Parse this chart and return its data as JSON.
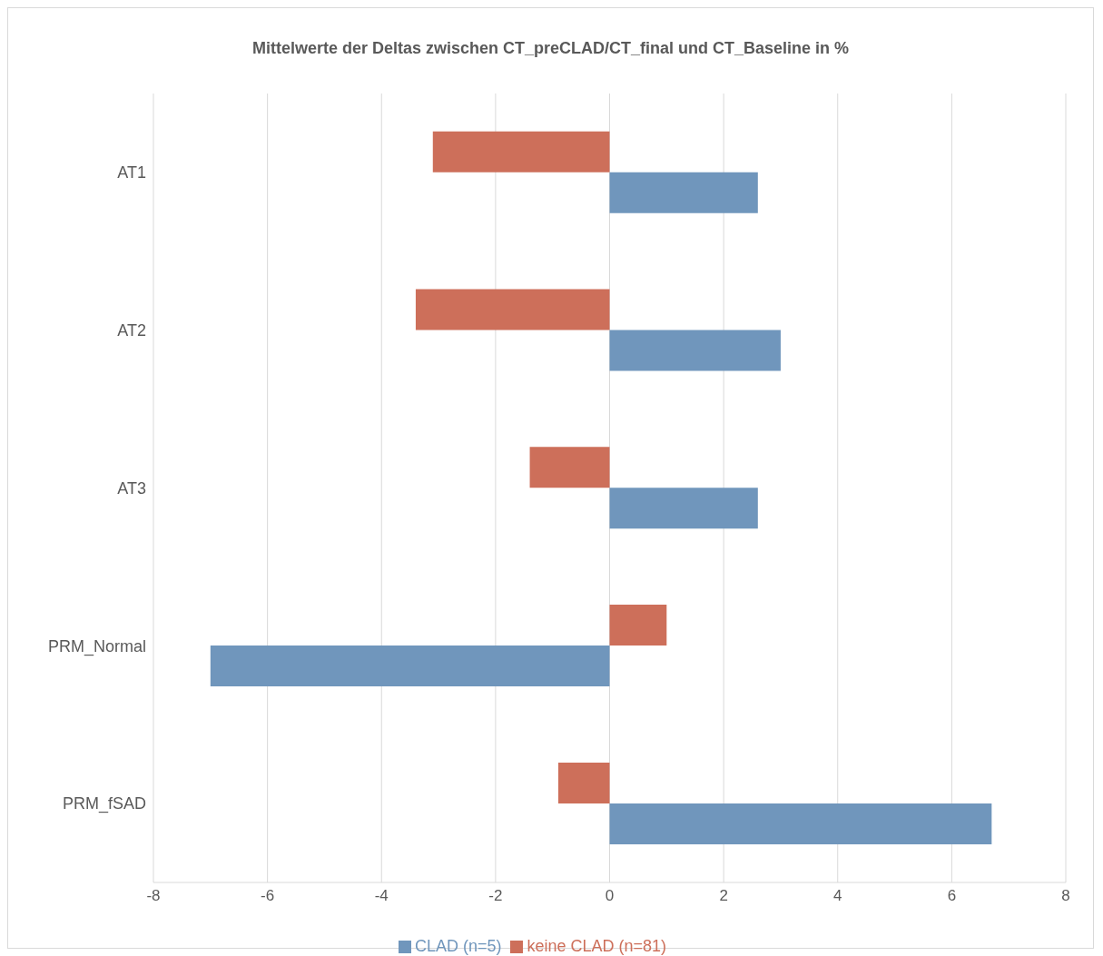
{
  "chart_data": {
    "type": "bar",
    "orientation": "horizontal",
    "title": "Mittelwerte der Deltas zwischen CT_preCLAD/CT_final und CT_Baseline in %",
    "categories": [
      "AT1",
      "AT2",
      "AT3",
      "PRM_Normal",
      "PRM_fSAD"
    ],
    "series": [
      {
        "name": "keine CLAD (n=81)",
        "color": "#cd6f5a",
        "values": [
          -3.1,
          -3.4,
          -1.4,
          1.0,
          -0.9
        ]
      },
      {
        "name": "CLAD (n=5)",
        "color": "#7096bc",
        "values": [
          2.6,
          3.0,
          2.6,
          -7.0,
          6.7
        ]
      }
    ],
    "xlim": [
      -8,
      8
    ],
    "xticks": [
      -8,
      -6,
      -4,
      -2,
      0,
      2,
      4,
      6,
      8
    ],
    "grid": "x",
    "legend": "bottom"
  }
}
